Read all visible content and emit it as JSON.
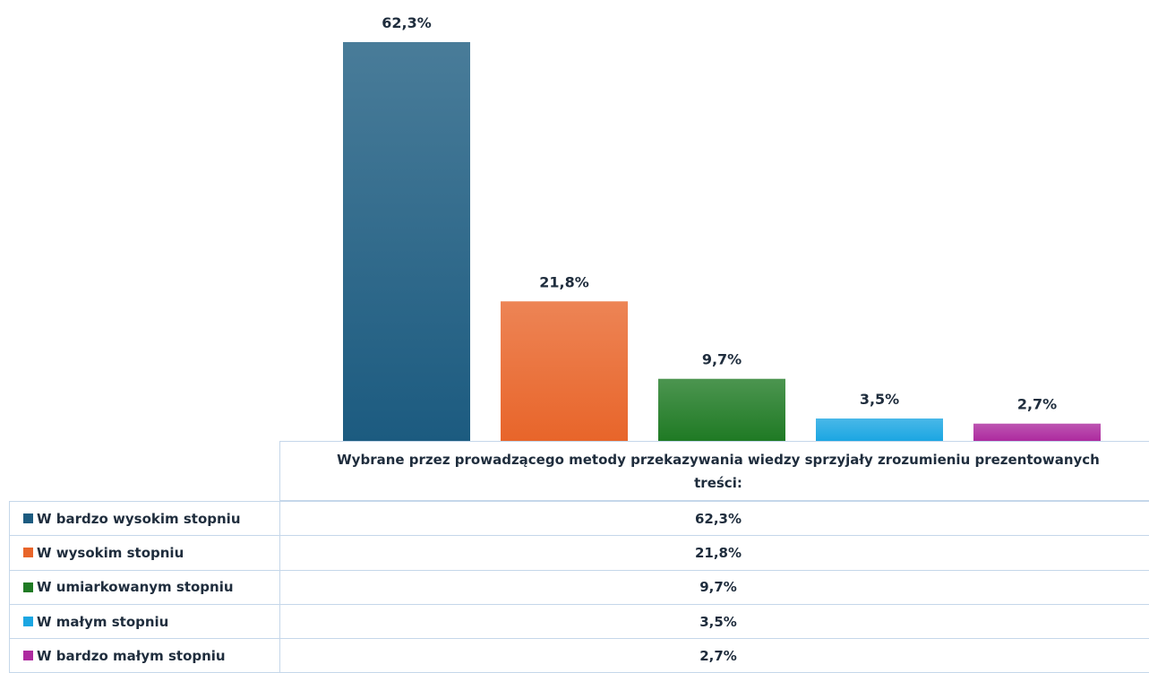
{
  "chart_data": {
    "type": "bar",
    "categories": [
      "Wybrane przez prowadzącego metody przekazywania wiedzy sprzyjały zrozumieniu prezentowanych treści:"
    ],
    "series": [
      {
        "name": "W bardzo wysokim stopniu",
        "color": "#1c5b80",
        "values": [
          62.3
        ],
        "value_labels": [
          "62,3%"
        ]
      },
      {
        "name": "W wysokim stopniu",
        "color": "#e8652a",
        "values": [
          21.8
        ],
        "value_labels": [
          "21,8%"
        ]
      },
      {
        "name": "W umiarkowanym stopniu",
        "color": "#1f7a24",
        "values": [
          9.7
        ],
        "value_labels": [
          "9,7%"
        ]
      },
      {
        "name": "W małym stopniu",
        "color": "#1ba6e2",
        "values": [
          3.5
        ],
        "value_labels": [
          "3,5%"
        ]
      },
      {
        "name": "W bardzo małym stopniu",
        "color": "#ad2a9f",
        "values": [
          2.7
        ],
        "value_labels": [
          "2,7%"
        ]
      }
    ]
  }
}
